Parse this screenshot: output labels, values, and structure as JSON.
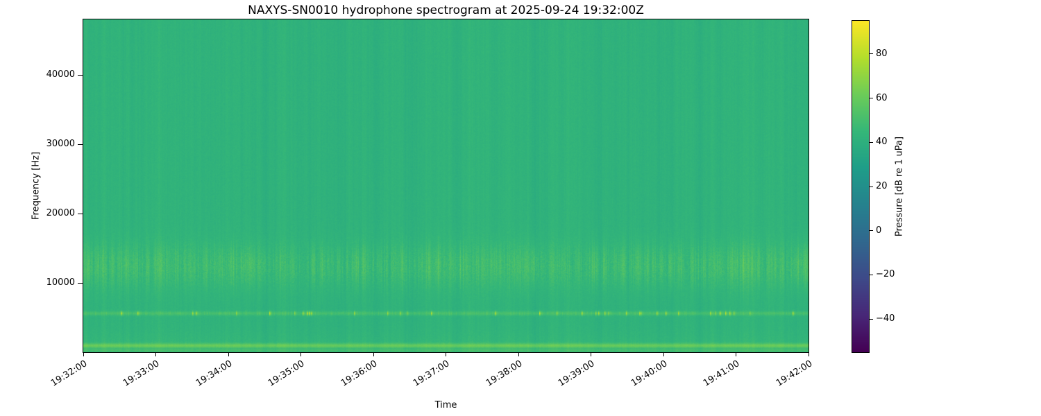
{
  "chart_data": {
    "type": "heatmap",
    "title": "NAXYS-SN0010 hydrophone spectrogram at 2025-09-24 19:32:00Z",
    "xlabel": "Time",
    "ylabel": "Frequency [Hz]",
    "x_tick_labels": [
      "19:32:00",
      "19:33:00",
      "19:34:00",
      "19:35:00",
      "19:36:00",
      "19:37:00",
      "19:38:00",
      "19:39:00",
      "19:40:00",
      "19:41:00",
      "19:42:00"
    ],
    "y_ticks": [
      10000,
      20000,
      30000,
      40000
    ],
    "freq_range_hz": [
      0,
      48000
    ],
    "time_span_minutes": 10,
    "colormap": "viridis",
    "grid": false,
    "legend": "none",
    "value_range_db": [
      -55,
      95
    ],
    "background_level_db": 42,
    "features": [
      {
        "name": "broadband-band",
        "freq_hz": [
          9000,
          16000
        ],
        "level_db": 50,
        "description": "elevated broadband energy band with vertical time striations"
      },
      {
        "name": "tonal-line",
        "freq_hz": 5600,
        "level_db": 50,
        "burst_level_db": 86,
        "description": "narrow tonal line with intermittent bright yellow bursts"
      },
      {
        "name": "low-frequency-band",
        "freq_hz": [
          0,
          1500
        ],
        "peak_freq_hz": 950,
        "level_db": 58,
        "description": "bright low-frequency noise stripe near the bottom edge"
      }
    ],
    "colorbar": {
      "label": "Pressure [dB re 1 uPa]",
      "ticks": [
        80,
        60,
        40,
        20,
        0,
        -20,
        -40
      ],
      "orientation": "vertical",
      "position": "right"
    }
  }
}
